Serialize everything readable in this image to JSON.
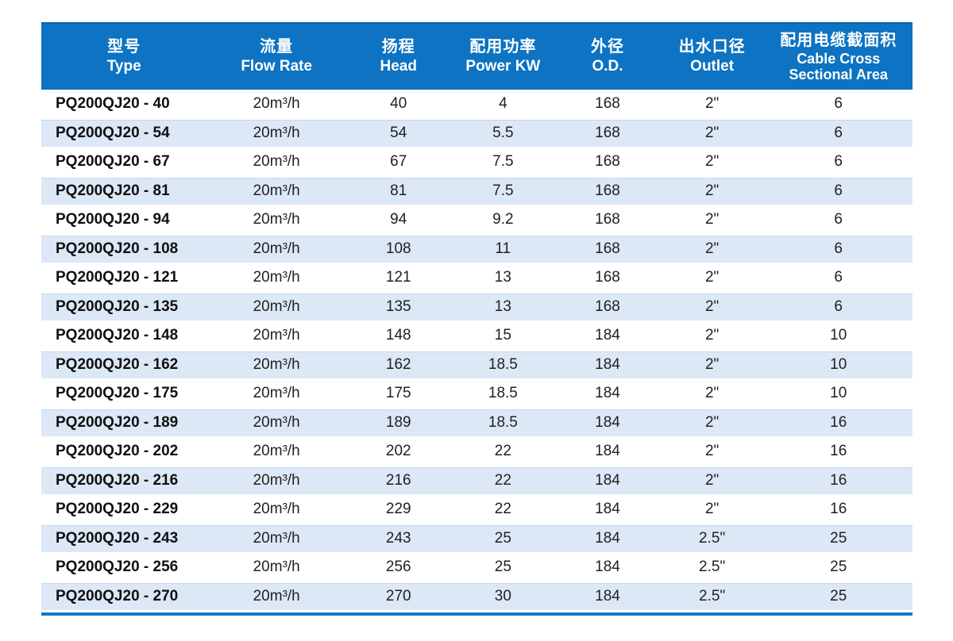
{
  "colors": {
    "header_bg": "#0d73c2",
    "header_top_edge": "#0a61a4",
    "stripe": "#dce8f6",
    "bottom_rule": "#1477cd"
  },
  "table": {
    "columns": [
      {
        "zh": "型号",
        "en": "Type"
      },
      {
        "zh": "流量",
        "en": "Flow Rate"
      },
      {
        "zh": "扬程",
        "en": "Head"
      },
      {
        "zh": "配用功率",
        "en": "Power KW"
      },
      {
        "zh": "外径",
        "en": "O.D."
      },
      {
        "zh": "出水口径",
        "en": "Outlet"
      },
      {
        "zh": "配用电缆截面积",
        "en": "Cable Cross",
        "en2": "Sectional Area"
      }
    ],
    "rows": [
      [
        "PQ200QJ20 - 40",
        "20m³/h",
        "40",
        "4",
        "168",
        "2\"",
        "6"
      ],
      [
        "PQ200QJ20 - 54",
        "20m³/h",
        "54",
        "5.5",
        "168",
        "2\"",
        "6"
      ],
      [
        "PQ200QJ20 - 67",
        "20m³/h",
        "67",
        "7.5",
        "168",
        "2\"",
        "6"
      ],
      [
        "PQ200QJ20 - 81",
        "20m³/h",
        "81",
        "7.5",
        "168",
        "2\"",
        "6"
      ],
      [
        "PQ200QJ20 - 94",
        "20m³/h",
        "94",
        "9.2",
        "168",
        "2\"",
        "6"
      ],
      [
        "PQ200QJ20 - 108",
        "20m³/h",
        "108",
        "11",
        "168",
        "2\"",
        "6"
      ],
      [
        "PQ200QJ20 - 121",
        "20m³/h",
        "121",
        "13",
        "168",
        "2\"",
        "6"
      ],
      [
        "PQ200QJ20 - 135",
        "20m³/h",
        "135",
        "13",
        "168",
        "2\"",
        "6"
      ],
      [
        "PQ200QJ20 - 148",
        "20m³/h",
        "148",
        "15",
        "184",
        "2\"",
        "10"
      ],
      [
        "PQ200QJ20 - 162",
        "20m³/h",
        "162",
        "18.5",
        "184",
        "2\"",
        "10"
      ],
      [
        "PQ200QJ20 - 175",
        "20m³/h",
        "175",
        "18.5",
        "184",
        "2\"",
        "10"
      ],
      [
        "PQ200QJ20 - 189",
        "20m³/h",
        "189",
        "18.5",
        "184",
        "2\"",
        "16"
      ],
      [
        "PQ200QJ20 - 202",
        "20m³/h",
        "202",
        "22",
        "184",
        "2\"",
        "16"
      ],
      [
        "PQ200QJ20 - 216",
        "20m³/h",
        "216",
        "22",
        "184",
        "2\"",
        "16"
      ],
      [
        "PQ200QJ20 - 229",
        "20m³/h",
        "229",
        "22",
        "184",
        "2\"",
        "16"
      ],
      [
        "PQ200QJ20 - 243",
        "20m³/h",
        "243",
        "25",
        "184",
        "2.5\"",
        "25"
      ],
      [
        "PQ200QJ20 - 256",
        "20m³/h",
        "256",
        "25",
        "184",
        "2.5\"",
        "25"
      ],
      [
        "PQ200QJ20 - 270",
        "20m³/h",
        "270",
        "30",
        "184",
        "2.5\"",
        "25"
      ]
    ]
  }
}
